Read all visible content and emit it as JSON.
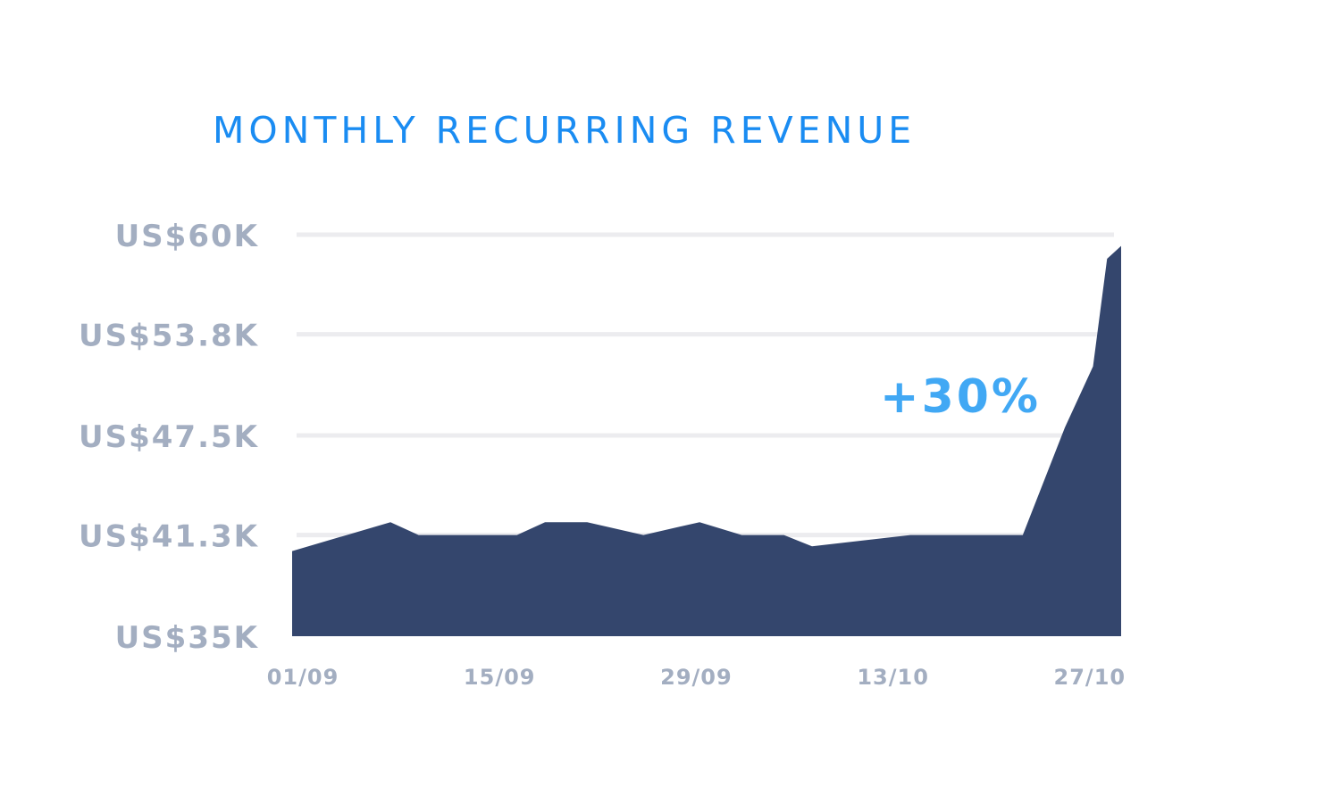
{
  "chart_data": {
    "type": "area",
    "title": "MONTHLY RECURRING REVENUE",
    "xlabel": "",
    "ylabel": "",
    "y_tick_labels": [
      "US$35K",
      "US$41.3K",
      "US$47.5K",
      "US$53.8K",
      "US$60K"
    ],
    "y_ticks": [
      35,
      41.3,
      47.5,
      53.8,
      60
    ],
    "ylim": [
      35,
      60
    ],
    "x_tick_labels": [
      "01/09",
      "15/09",
      "29/09",
      "13/10",
      "27/10"
    ],
    "x_ticks": [
      0,
      14,
      28,
      42,
      56
    ],
    "xlim": [
      0,
      59
    ],
    "grid": true,
    "color": "#34466d",
    "annotation": "+30%",
    "series": [
      {
        "x": [
          0,
          7,
          9,
          16,
          18,
          21,
          25,
          29,
          32,
          35,
          37,
          44,
          52,
          55,
          57,
          58,
          59
        ],
        "y": [
          40.3,
          42.1,
          41.3,
          41.3,
          42.1,
          42.1,
          41.3,
          42.1,
          41.3,
          41.3,
          40.6,
          41.3,
          41.3,
          48.0,
          51.8,
          58.5,
          59.3
        ]
      }
    ]
  }
}
